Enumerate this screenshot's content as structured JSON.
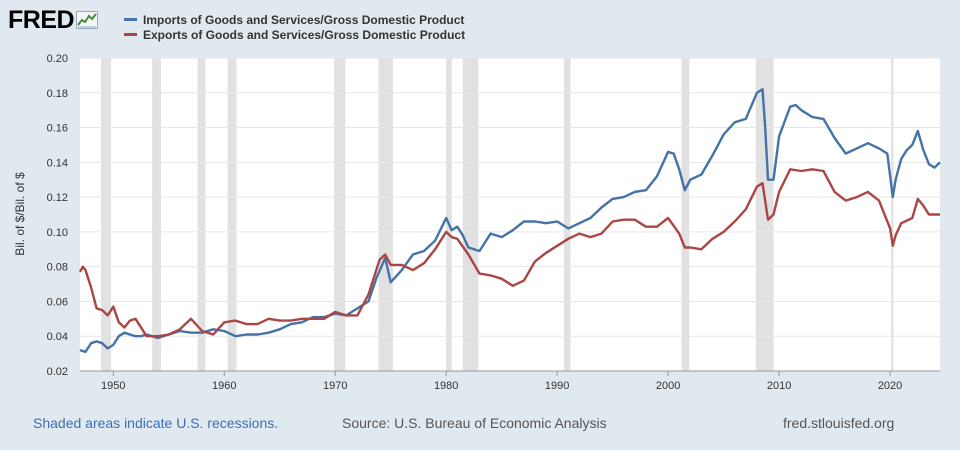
{
  "brand": {
    "logo_text": "FRED",
    "url": "fred.stlouisfed.org"
  },
  "footer": {
    "recession_note": "Shaded areas indicate U.S. recessions.",
    "source": "Source: U.S. Bureau of Economic Analysis"
  },
  "colors": {
    "imports": "#4572a7",
    "exports": "#aa4643",
    "recession": "#e1e1e1",
    "background": "#e1e9f0"
  },
  "chart_data": {
    "type": "line",
    "title": "",
    "xlabel": "",
    "ylabel": "Bil. of $/Bil. of $",
    "xlim": [
      1947.0,
      2024.5
    ],
    "ylim": [
      0.02,
      0.2
    ],
    "yticks": [
      "0.02",
      "0.04",
      "0.06",
      "0.08",
      "0.10",
      "0.12",
      "0.14",
      "0.16",
      "0.18",
      "0.20"
    ],
    "xticks": [
      "1950",
      "1960",
      "1970",
      "1980",
      "1990",
      "2000",
      "2010",
      "2020"
    ],
    "grid": "horizontal",
    "legend_position": "top-left",
    "recessions": [
      [
        1948.9,
        1949.8
      ],
      [
        1953.5,
        1954.3
      ],
      [
        1957.6,
        1958.3
      ],
      [
        1960.3,
        1961.1
      ],
      [
        1969.9,
        1970.9
      ],
      [
        1973.9,
        1975.2
      ],
      [
        1980.0,
        1980.5
      ],
      [
        1981.5,
        1982.9
      ],
      [
        1990.6,
        1991.2
      ],
      [
        2001.2,
        2001.9
      ],
      [
        2007.9,
        2009.5
      ],
      [
        2020.1,
        2020.3
      ]
    ],
    "series": [
      {
        "name": "Imports of Goods and Services/Gross Domestic Product",
        "x": [
          1947.0,
          1947.5,
          1948.0,
          1948.5,
          1949.0,
          1949.5,
          1950.0,
          1950.5,
          1951.0,
          1951.5,
          1952.0,
          1952.5,
          1953.0,
          1953.5,
          1954.0,
          1955.0,
          1956.0,
          1957.0,
          1958.0,
          1959.0,
          1960.0,
          1961.0,
          1962.0,
          1963.0,
          1964.0,
          1965.0,
          1966.0,
          1967.0,
          1968.0,
          1969.0,
          1970.0,
          1971.0,
          1972.0,
          1973.0,
          1973.75,
          1974.5,
          1975.0,
          1976.0,
          1977.0,
          1978.0,
          1979.0,
          1980.0,
          1980.5,
          1981.0,
          1981.5,
          1982.0,
          1983.0,
          1984.0,
          1985.0,
          1986.0,
          1987.0,
          1988.0,
          1989.0,
          1990.0,
          1991.0,
          1992.0,
          1993.0,
          1994.0,
          1995.0,
          1996.0,
          1997.0,
          1998.0,
          1999.0,
          2000.0,
          2000.5,
          2001.0,
          2001.5,
          2002.0,
          2003.0,
          2004.0,
          2005.0,
          2006.0,
          2007.0,
          2008.0,
          2008.5,
          2008.75,
          2009.0,
          2009.5,
          2010.0,
          2011.0,
          2011.5,
          2012.0,
          2013.0,
          2014.0,
          2015.0,
          2016.0,
          2017.0,
          2018.0,
          2019.0,
          2019.75,
          2020.25,
          2020.5,
          2021.0,
          2021.5,
          2022.0,
          2022.5,
          2023.0,
          2023.5,
          2024.0,
          2024.5
        ],
        "values": [
          0.032,
          0.031,
          0.036,
          0.037,
          0.036,
          0.033,
          0.035,
          0.04,
          0.042,
          0.041,
          0.04,
          0.04,
          0.041,
          0.04,
          0.039,
          0.041,
          0.043,
          0.042,
          0.042,
          0.044,
          0.043,
          0.04,
          0.041,
          0.041,
          0.042,
          0.044,
          0.047,
          0.048,
          0.051,
          0.051,
          0.053,
          0.052,
          0.056,
          0.06,
          0.074,
          0.085,
          0.071,
          0.078,
          0.087,
          0.089,
          0.095,
          0.108,
          0.101,
          0.103,
          0.098,
          0.091,
          0.089,
          0.099,
          0.097,
          0.101,
          0.106,
          0.106,
          0.105,
          0.106,
          0.102,
          0.105,
          0.108,
          0.114,
          0.119,
          0.12,
          0.123,
          0.124,
          0.132,
          0.146,
          0.145,
          0.136,
          0.124,
          0.13,
          0.133,
          0.144,
          0.156,
          0.163,
          0.165,
          0.18,
          0.182,
          0.16,
          0.13,
          0.13,
          0.155,
          0.172,
          0.173,
          0.17,
          0.166,
          0.165,
          0.154,
          0.145,
          0.148,
          0.151,
          0.148,
          0.145,
          0.12,
          0.13,
          0.142,
          0.147,
          0.15,
          0.158,
          0.147,
          0.139,
          0.137,
          0.14
        ]
      },
      {
        "name": "Exports of Goods and Services/Gross Domestic Product",
        "x": [
          1947.0,
          1947.25,
          1947.5,
          1948.0,
          1948.5,
          1949.0,
          1949.5,
          1950.0,
          1950.5,
          1951.0,
          1951.5,
          1952.0,
          1953.0,
          1954.0,
          1955.0,
          1956.0,
          1957.0,
          1958.0,
          1959.0,
          1960.0,
          1961.0,
          1962.0,
          1963.0,
          1964.0,
          1965.0,
          1966.0,
          1967.0,
          1968.0,
          1969.0,
          1970.0,
          1971.0,
          1972.0,
          1973.0,
          1974.0,
          1974.5,
          1975.0,
          1976.0,
          1977.0,
          1978.0,
          1979.0,
          1980.0,
          1980.5,
          1981.0,
          1982.0,
          1983.0,
          1984.0,
          1985.0,
          1986.0,
          1987.0,
          1988.0,
          1989.0,
          1990.0,
          1991.0,
          1992.0,
          1993.0,
          1994.0,
          1995.0,
          1996.0,
          1997.0,
          1998.0,
          1999.0,
          2000.0,
          2001.0,
          2001.5,
          2002.0,
          2003.0,
          2004.0,
          2005.0,
          2006.0,
          2007.0,
          2008.0,
          2008.5,
          2009.0,
          2009.5,
          2010.0,
          2011.0,
          2012.0,
          2013.0,
          2014.0,
          2015.0,
          2016.0,
          2017.0,
          2018.0,
          2019.0,
          2020.0,
          2020.25,
          2020.5,
          2021.0,
          2022.0,
          2022.5,
          2023.0,
          2023.5,
          2024.0,
          2024.5
        ],
        "values": [
          0.077,
          0.08,
          0.078,
          0.068,
          0.056,
          0.055,
          0.052,
          0.057,
          0.048,
          0.045,
          0.049,
          0.05,
          0.04,
          0.04,
          0.041,
          0.044,
          0.05,
          0.043,
          0.041,
          0.048,
          0.049,
          0.047,
          0.047,
          0.05,
          0.049,
          0.049,
          0.05,
          0.05,
          0.05,
          0.054,
          0.052,
          0.052,
          0.064,
          0.084,
          0.087,
          0.081,
          0.081,
          0.078,
          0.082,
          0.09,
          0.1,
          0.097,
          0.096,
          0.087,
          0.076,
          0.075,
          0.073,
          0.069,
          0.072,
          0.083,
          0.088,
          0.092,
          0.096,
          0.099,
          0.097,
          0.099,
          0.106,
          0.107,
          0.107,
          0.103,
          0.103,
          0.108,
          0.099,
          0.091,
          0.091,
          0.09,
          0.096,
          0.1,
          0.106,
          0.113,
          0.126,
          0.128,
          0.107,
          0.11,
          0.123,
          0.136,
          0.135,
          0.136,
          0.135,
          0.123,
          0.118,
          0.12,
          0.123,
          0.118,
          0.102,
          0.092,
          0.098,
          0.105,
          0.108,
          0.119,
          0.115,
          0.11,
          0.11,
          0.11
        ]
      }
    ]
  }
}
